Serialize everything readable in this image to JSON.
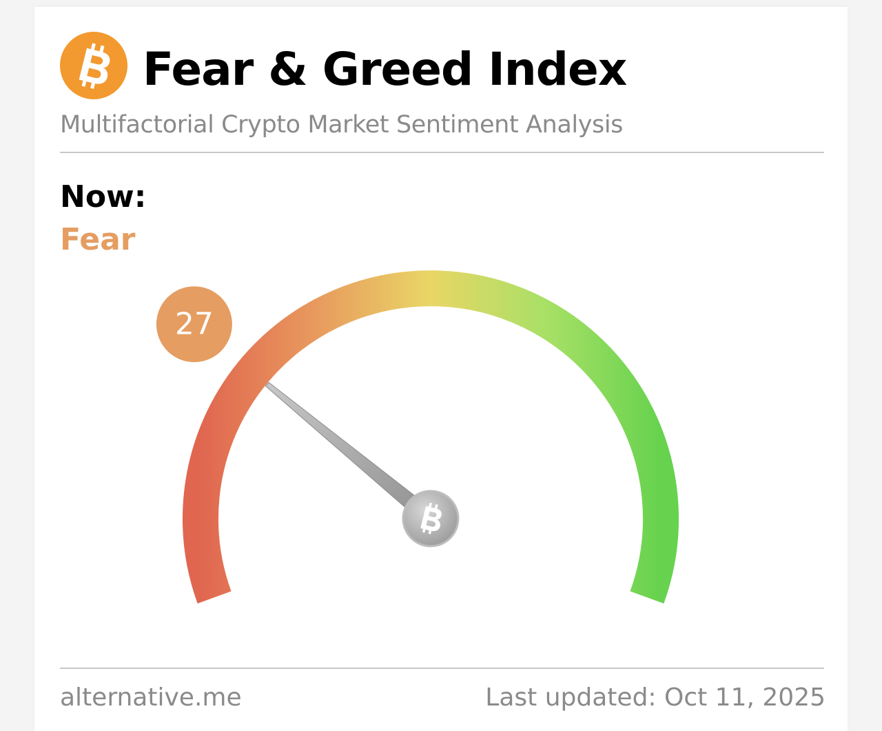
{
  "header": {
    "logo_icon": "bitcoin-icon",
    "title": "Fear & Greed Index",
    "subtitle": "Multifactorial Crypto Market Sentiment Analysis"
  },
  "status": {
    "now_label": "Now:",
    "classification": "Fear",
    "classification_color": "#e59d62"
  },
  "gauge": {
    "value": 27,
    "value_label": "27",
    "min": 0,
    "max": 100,
    "badge_color": "#e59d62",
    "hub_icon": "bitcoin-icon",
    "gradient_colors": [
      "#e06650",
      "#e89a5e",
      "#e9d666",
      "#a8e066",
      "#66d24e"
    ]
  },
  "footer": {
    "source": "alternative.me",
    "last_updated": "Last updated: Oct 11, 2025"
  }
}
